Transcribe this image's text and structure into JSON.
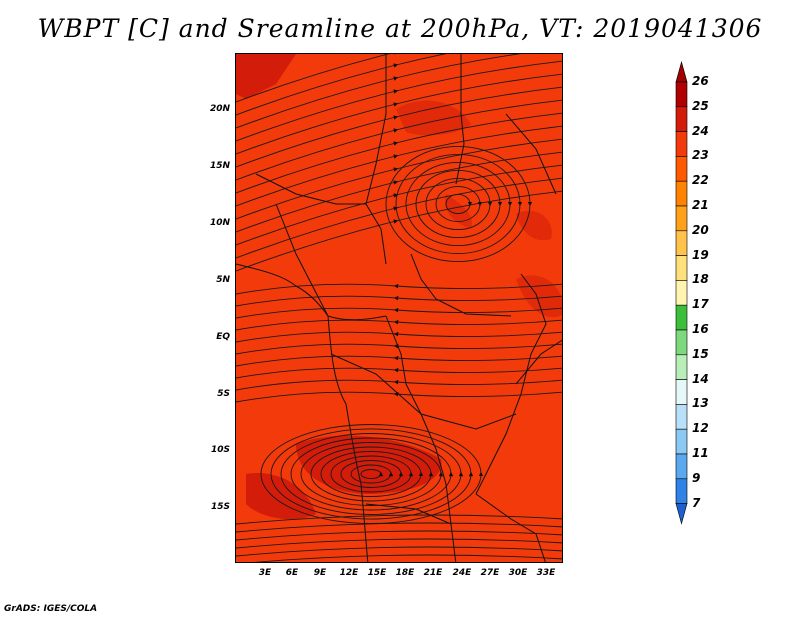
{
  "title": "WBPT [C] and Sreamline at 200hPa, VT: 2019041306",
  "footer": "GrADS: IGES/COLA",
  "map": {
    "variable": "WBPT",
    "units": "C",
    "level": "200hPa",
    "valid_time": "2019041306",
    "lat_labels": [
      "20N",
      "15N",
      "10N",
      "5N",
      "EQ",
      "5S",
      "10S",
      "15S"
    ],
    "lon_labels": [
      "3E",
      "6E",
      "9E",
      "12E",
      "15E",
      "18E",
      "21E",
      "24E",
      "27E",
      "30E",
      "33E"
    ],
    "background_color": "#f23a0a"
  },
  "colorbar": {
    "levels": [
      "26",
      "25",
      "24",
      "23",
      "22",
      "21",
      "20",
      "19",
      "18",
      "17",
      "16",
      "15",
      "14",
      "13",
      "12",
      "11",
      "9",
      "7"
    ],
    "colors": [
      "#b00000",
      "#d41c0a",
      "#f23a0a",
      "#ff5a00",
      "#ff8200",
      "#ffa21a",
      "#ffc24a",
      "#ffe07a",
      "#fff4b0",
      "#3bbf3b",
      "#7ed97e",
      "#b8eeb8",
      "#e6f8f8",
      "#b8e0f8",
      "#8cc8f4",
      "#5aa8ef",
      "#2f82e6",
      "#1e5fd2"
    ],
    "top_arrow_color": "#a00000",
    "bottom_arrow_color": "#1e5fd2"
  }
}
